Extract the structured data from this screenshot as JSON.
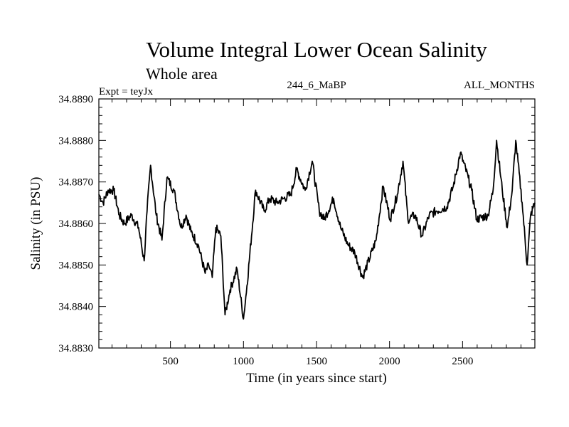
{
  "chart_data": {
    "type": "line",
    "title": "Volume Integral Lower Ocean Salinity",
    "subtitle": "Whole area",
    "annotations": {
      "experiment": "Expt = teyJx",
      "run_id": "244_6_MaBP",
      "months": "ALL_MONTHS"
    },
    "xlabel": "Time (in years since start)",
    "ylabel": "Salinity (in PSU)",
    "xlim": [
      10,
      2995
    ],
    "ylim": [
      34.883,
      34.889
    ],
    "x_ticks": [
      500,
      1000,
      1500,
      2000,
      2500
    ],
    "x_tick_labels": [
      "500",
      "1000",
      "1500",
      "2000",
      "2500"
    ],
    "x_minor_step": 100,
    "y_ticks": [
      34.883,
      34.884,
      34.885,
      34.886,
      34.887,
      34.888,
      34.889
    ],
    "y_tick_labels": [
      "34.8830",
      "34.8840",
      "34.8850",
      "34.8860",
      "34.8870",
      "34.8880",
      "34.8890"
    ],
    "y_minor_step": 0.0002,
    "grid": false,
    "legend": "none",
    "series": [
      {
        "name": "Salinity",
        "color": "#000000",
        "x": [
          10,
          39,
          73,
          112,
          150,
          184,
          233,
          282,
          320,
          340,
          364,
          403,
          442,
          476,
          524,
          573,
          607,
          641,
          689,
          738,
          762,
          786,
          811,
          845,
          874,
          908,
          956,
          1000,
          1024,
          1083,
          1141,
          1180,
          1228,
          1277,
          1325,
          1364,
          1422,
          1471,
          1519,
          1553,
          1617,
          1665,
          1714,
          1762,
          1816,
          1908,
          1908,
          1956,
          2005,
          2053,
          2092,
          2126,
          2175,
          2223,
          2272,
          2320,
          2393,
          2437,
          2485,
          2539,
          2562,
          2597,
          2675,
          2709,
          2733,
          2772,
          2806,
          2840,
          2864,
          2908,
          2942,
          2966,
          2995
        ],
        "values": [
          34.8867,
          34.8865,
          34.8868,
          34.8868,
          34.8862,
          34.886,
          34.8862,
          34.8859,
          34.8851,
          34.8863,
          34.8874,
          34.8862,
          34.8856,
          34.8871,
          34.8868,
          34.8859,
          34.8862,
          34.8858,
          34.8855,
          34.8848,
          34.885,
          34.8847,
          34.8859,
          34.8857,
          34.8838,
          34.8844,
          34.8849,
          34.8837,
          34.8845,
          34.8868,
          34.8863,
          34.8866,
          34.8865,
          34.8866,
          34.8867,
          34.8873,
          34.8868,
          34.8875,
          34.8863,
          34.8861,
          34.8866,
          34.8859,
          34.8855,
          34.8853,
          34.8847,
          34.8856,
          34.8856,
          34.8869,
          34.8861,
          34.8867,
          34.8875,
          34.8861,
          34.8862,
          34.8857,
          34.8862,
          34.8863,
          34.8864,
          34.8869,
          34.8877,
          34.8871,
          34.8868,
          34.8861,
          34.8862,
          34.8868,
          34.888,
          34.8868,
          34.8859,
          34.8868,
          34.888,
          34.8865,
          34.885,
          34.8862,
          34.8865
        ]
      }
    ]
  }
}
